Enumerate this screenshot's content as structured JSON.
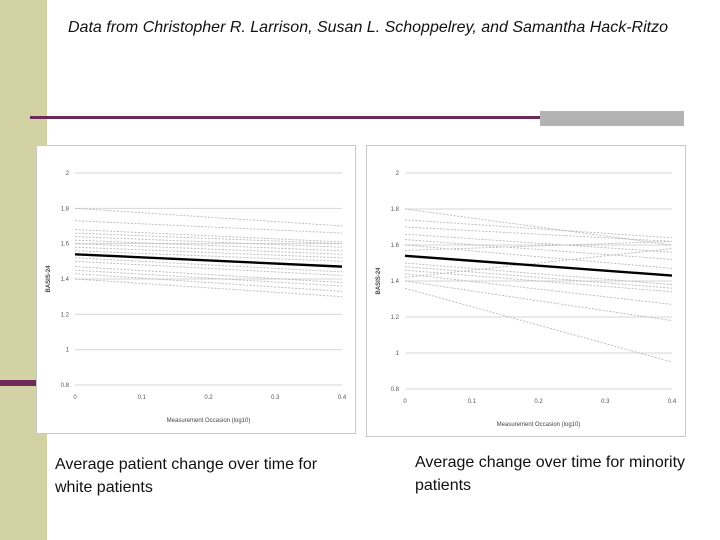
{
  "title": "Data from Christopher R. Larrison, Susan L. Schoppelrey, and Samantha Hack-Ritzo",
  "captions": {
    "left": "Average patient change over time for white patients",
    "right": "Average change over time for minority patients"
  },
  "colors": {
    "accent": "#6b2a59",
    "sidebar": "#d3d2a4",
    "avg_line": "#000000",
    "individual_line": "#b8b8b8",
    "grid": "#d6d6d6"
  },
  "chart_data": [
    {
      "type": "line",
      "panel": "left",
      "title": "",
      "xlabel": "Measurement Occasion (log10)",
      "ylabel": "BASIS-24",
      "xlim": [
        0,
        0.4
      ],
      "ylim": [
        0.8,
        2
      ],
      "x_ticks": [
        "0",
        "0.1",
        "0.2",
        "0.3",
        "0.4"
      ],
      "y_ticks": [
        "0.8",
        "1",
        "1.2",
        "1.4",
        "1.6",
        "1.8",
        "2"
      ],
      "x": [
        0,
        0.4
      ],
      "series": [
        {
          "name": "average",
          "values": [
            1.54,
            1.47
          ]
        },
        {
          "name": "patient-1",
          "values": [
            1.8,
            1.7
          ]
        },
        {
          "name": "patient-2",
          "values": [
            1.73,
            1.66
          ]
        },
        {
          "name": "patient-3",
          "values": [
            1.68,
            1.61
          ]
        },
        {
          "name": "patient-4",
          "values": [
            1.66,
            1.6
          ]
        },
        {
          "name": "patient-5",
          "values": [
            1.64,
            1.58
          ]
        },
        {
          "name": "patient-6",
          "values": [
            1.62,
            1.56
          ]
        },
        {
          "name": "patient-7",
          "values": [
            1.6,
            1.54
          ]
        },
        {
          "name": "patient-8",
          "values": [
            1.58,
            1.52
          ]
        },
        {
          "name": "patient-9",
          "values": [
            1.56,
            1.5
          ]
        },
        {
          "name": "patient-10",
          "values": [
            1.52,
            1.44
          ]
        },
        {
          "name": "patient-11",
          "values": [
            1.5,
            1.42
          ]
        },
        {
          "name": "patient-12",
          "values": [
            1.47,
            1.38
          ]
        },
        {
          "name": "patient-13",
          "values": [
            1.45,
            1.36
          ]
        },
        {
          "name": "patient-14",
          "values": [
            1.43,
            1.33
          ]
        },
        {
          "name": "patient-15",
          "values": [
            1.4,
            1.3
          ]
        }
      ]
    },
    {
      "type": "line",
      "panel": "right",
      "title": "",
      "xlabel": "Measurement Occasion (log10)",
      "ylabel": "BASIS-24",
      "xlim": [
        0,
        0.4
      ],
      "ylim": [
        0.8,
        2
      ],
      "x_ticks": [
        "0",
        "0.1",
        "0.2",
        "0.3",
        "0.4"
      ],
      "y_ticks": [
        "0.8",
        "1",
        "1.2",
        "1.4",
        "1.6",
        "1.8",
        "2"
      ],
      "x": [
        0,
        0.4
      ],
      "series": [
        {
          "name": "average",
          "values": [
            1.54,
            1.43
          ]
        },
        {
          "name": "patient-1",
          "values": [
            1.8,
            1.6
          ]
        },
        {
          "name": "patient-2",
          "values": [
            1.74,
            1.64
          ]
        },
        {
          "name": "patient-3",
          "values": [
            1.7,
            1.62
          ]
        },
        {
          "name": "patient-4",
          "values": [
            1.66,
            1.56
          ]
        },
        {
          "name": "patient-5",
          "values": [
            1.63,
            1.52
          ]
        },
        {
          "name": "patient-6",
          "values": [
            1.6,
            1.47
          ]
        },
        {
          "name": "patient-7",
          "values": [
            1.57,
            1.62
          ]
        },
        {
          "name": "patient-8",
          "values": [
            1.5,
            1.38
          ]
        },
        {
          "name": "patient-9",
          "values": [
            1.48,
            1.36
          ]
        },
        {
          "name": "patient-10",
          "values": [
            1.46,
            1.34
          ]
        },
        {
          "name": "patient-11",
          "values": [
            1.44,
            1.27
          ]
        },
        {
          "name": "patient-12",
          "values": [
            1.42,
            1.58
          ]
        },
        {
          "name": "patient-13",
          "values": [
            1.4,
            1.18
          ]
        },
        {
          "name": "patient-14",
          "values": [
            1.36,
            0.95
          ]
        }
      ]
    }
  ]
}
